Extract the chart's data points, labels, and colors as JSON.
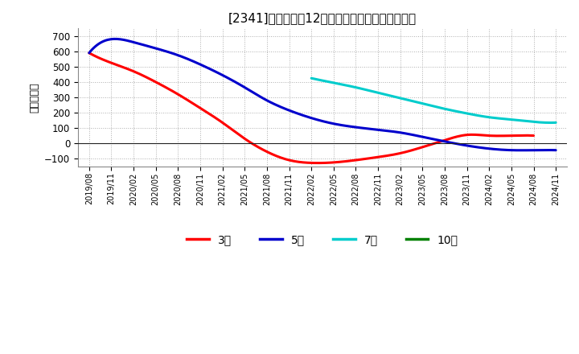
{
  "title": "[2341]　経常利益12か月移動合計の平均値の推移",
  "ylabel": "（百万円）",
  "background_color": "#ffffff",
  "plot_bg_color": "#ffffff",
  "grid_color": "#999999",
  "ylim": [
    -150,
    750
  ],
  "yticks": [
    -100,
    0,
    100,
    200,
    300,
    400,
    500,
    600,
    700
  ],
  "x_labels": [
    "2019/08",
    "2019/11",
    "2020/02",
    "2020/05",
    "2020/08",
    "2020/11",
    "2021/02",
    "2021/05",
    "2021/08",
    "2021/11",
    "2022/02",
    "2022/05",
    "2022/08",
    "2022/11",
    "2023/02",
    "2023/05",
    "2023/08",
    "2023/11",
    "2024/02",
    "2024/05",
    "2024/08",
    "2024/11"
  ],
  "series_3": {
    "color": "#ff0000",
    "xi": [
      0,
      1,
      2,
      3,
      4,
      5,
      6,
      7,
      8,
      9,
      10,
      11,
      12,
      13,
      14,
      15,
      16,
      17,
      18,
      19,
      20
    ],
    "yi": [
      590,
      525,
      470,
      400,
      320,
      230,
      135,
      30,
      -55,
      -110,
      -128,
      -125,
      -110,
      -90,
      -65,
      -25,
      20,
      55,
      50,
      50,
      50
    ]
  },
  "series_5": {
    "color": "#0000cc",
    "xi": [
      0,
      1,
      2,
      3,
      4,
      5,
      6,
      7,
      8,
      9,
      10,
      11,
      12,
      13,
      14,
      15,
      16,
      17,
      18,
      19,
      20,
      21
    ],
    "yi": [
      590,
      680,
      660,
      620,
      575,
      515,
      445,
      365,
      280,
      215,
      165,
      128,
      105,
      88,
      70,
      42,
      12,
      -15,
      -35,
      -45,
      -45,
      -45
    ]
  },
  "series_7": {
    "color": "#00cccc",
    "xi": [
      10,
      11,
      12,
      13,
      14,
      15,
      16,
      17,
      18,
      19,
      20,
      21
    ],
    "yi": [
      425,
      395,
      365,
      330,
      295,
      260,
      225,
      195,
      170,
      155,
      140,
      135
    ]
  },
  "series_10": {
    "color": "#008000",
    "xi": [],
    "yi": []
  },
  "legend_labels": [
    "3年",
    "5年",
    "7年",
    "10年"
  ],
  "legend_colors": [
    "#ff0000",
    "#0000cc",
    "#00cccc",
    "#008000"
  ]
}
